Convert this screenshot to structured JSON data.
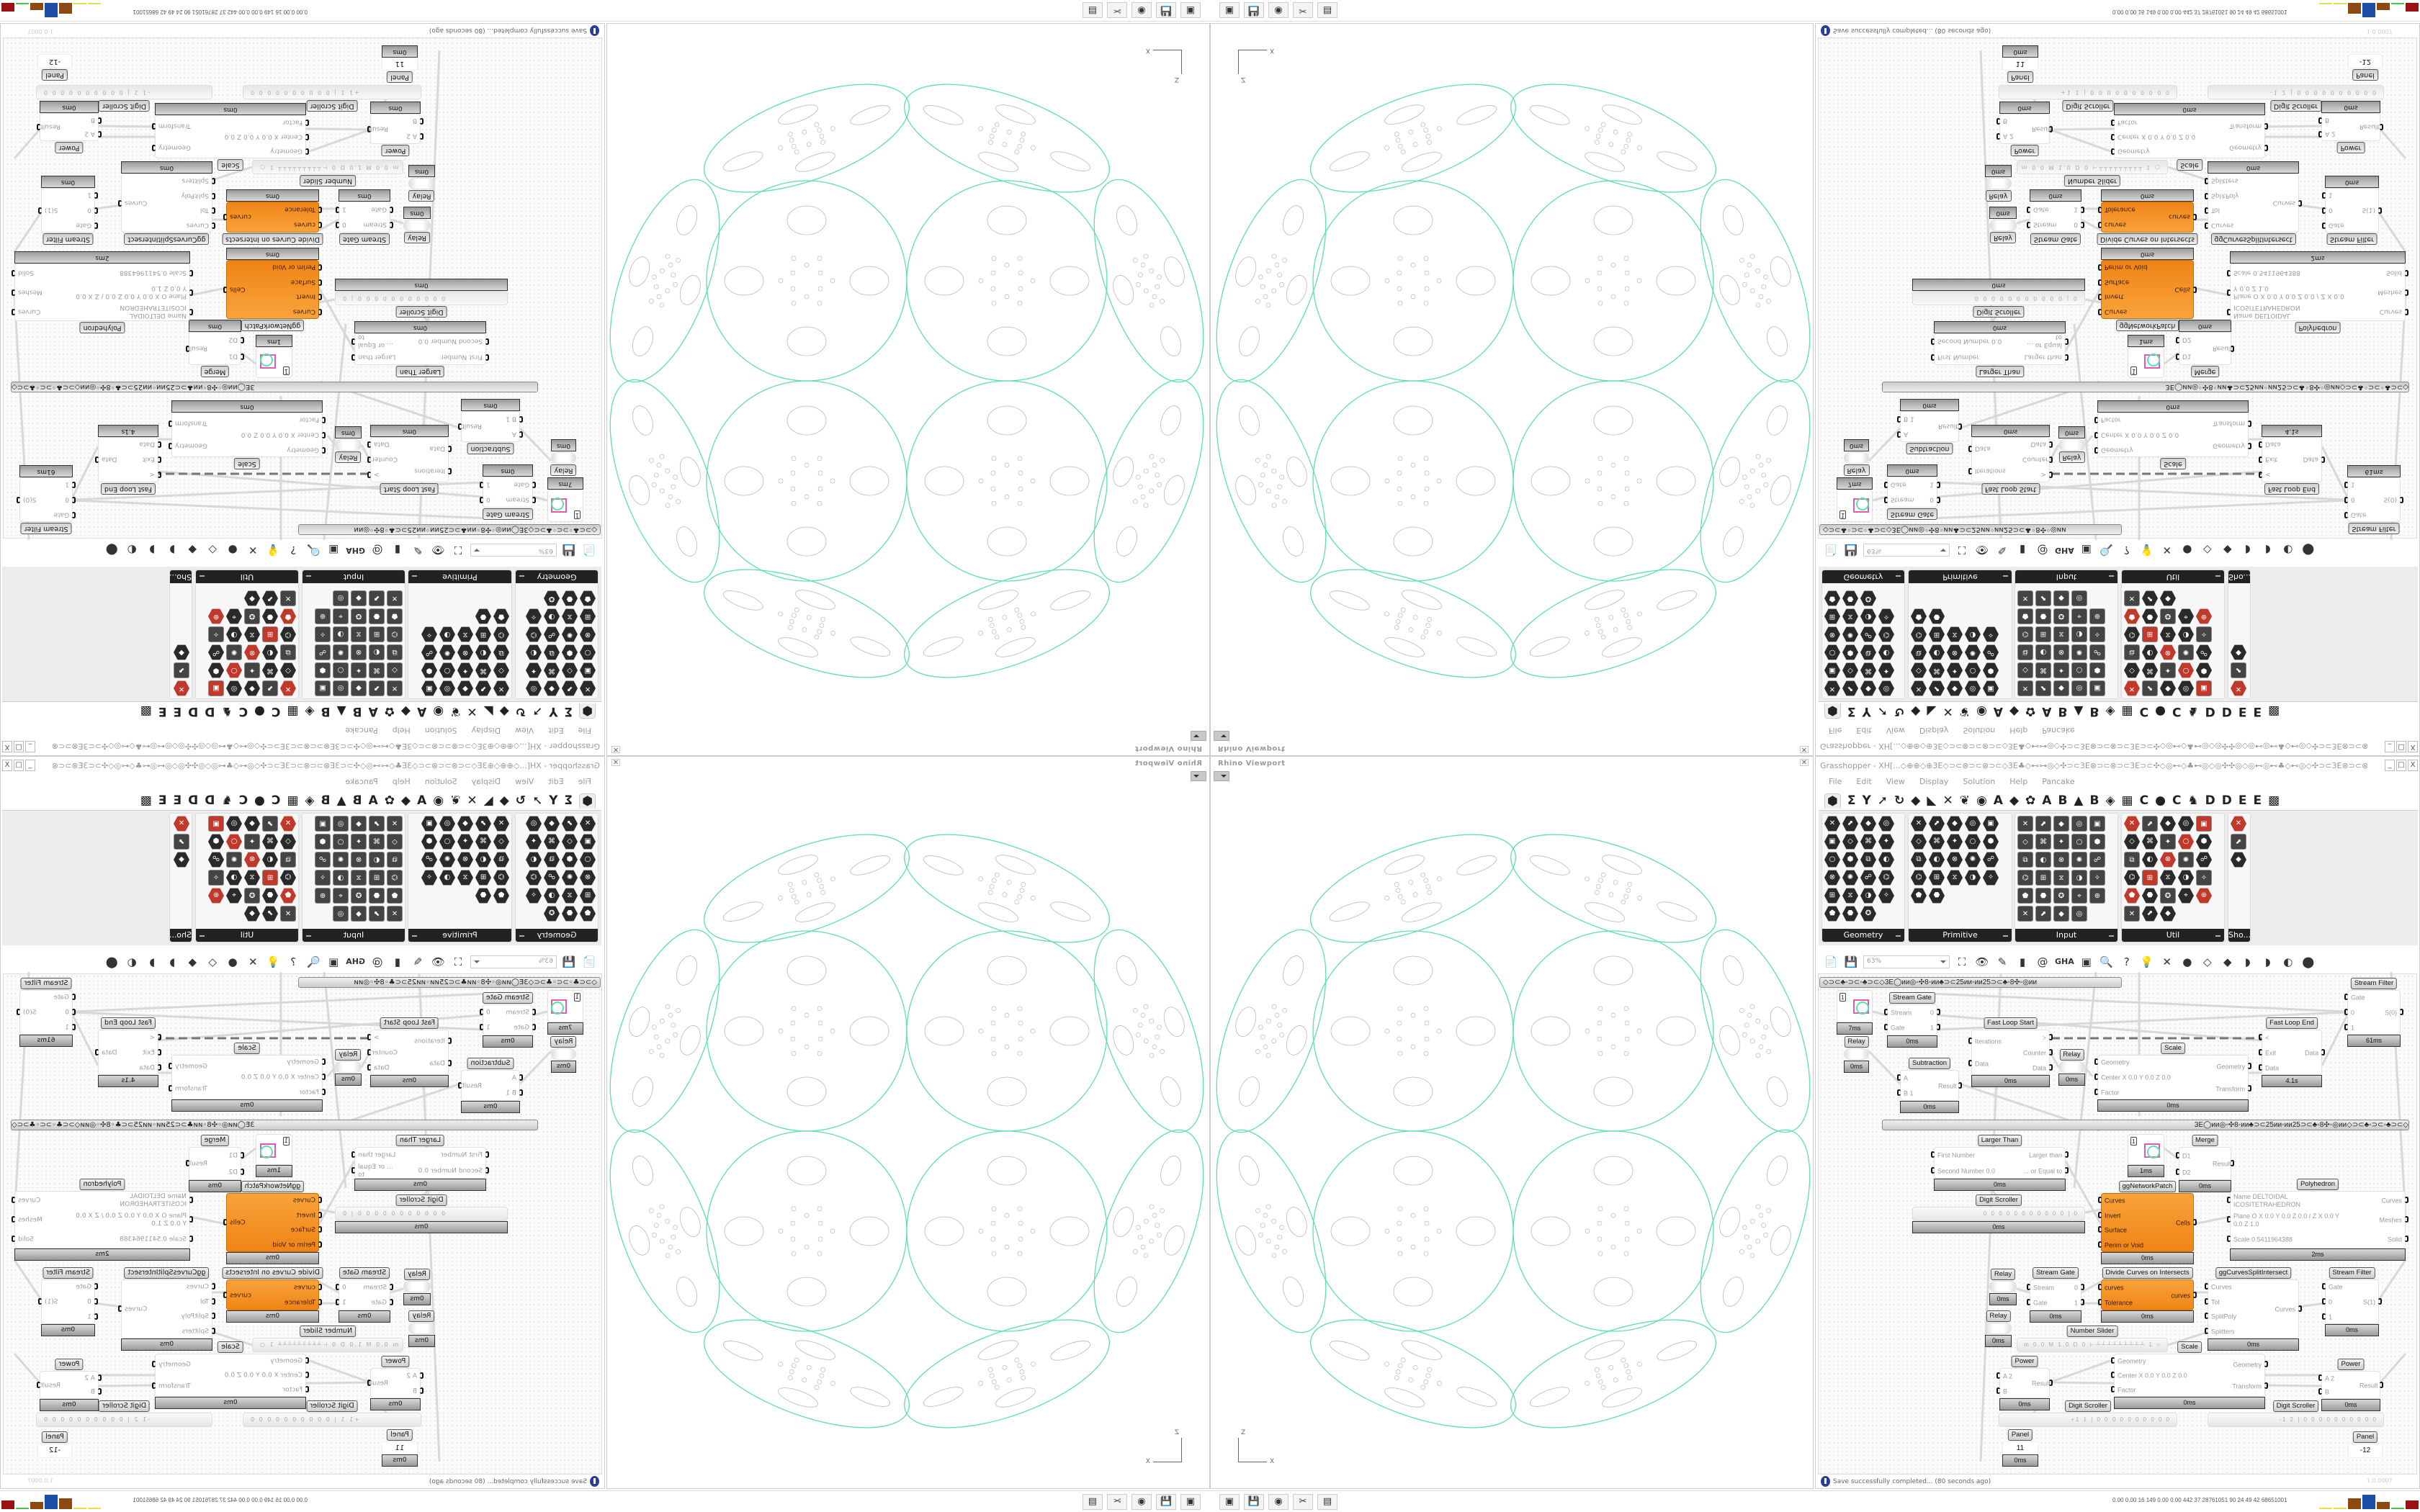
{
  "viewport": {
    "title": "Rhino Viewport",
    "close": "✕",
    "axis_z": "Z",
    "axis_x": "X",
    "curve_color": "#5fe0a8",
    "detail_color": "#b8b8b8"
  },
  "taskbar": {
    "icons": [
      "▣",
      "💾",
      "◉",
      "✂",
      "▤"
    ],
    "stats": "0.00 0.00  16  149  0.00 0.00  442  37  28761051  90  24  49  42  68651001",
    "bar_colors": [
      "#e8e04a",
      "#e8e04a",
      "#8b4a12",
      "#1d4fa8",
      "#8b4a12",
      "#4ec24e",
      "#9a1212"
    ]
  },
  "grasshopper": {
    "title": "Grasshopper - XH[...◇⊕⊕◇⊕3E◇⊃⊂⊗⊃⊂⊗⊃⊂◇3E♣◇⊷⊶◎◇✣⊃⊂3E⊗⊃⊂⊗⊃⊂3E⊃⊂✣◇◎⊷◇♣⊷◎◇◎✣✣◎◇◎⊷◎⊷♣◇⊷◎◇✣⊃⊂3E⊗⊃⊂⊗⊃⊂...",
    "window_buttons": [
      "_",
      "□",
      "X"
    ],
    "menu": [
      "File",
      "Edit",
      "View",
      "Display",
      "Solution",
      "Help",
      "Pancake"
    ],
    "tabs": [
      "⬢",
      "Σ",
      "Y",
      "➚",
      "↻",
      "◆",
      "◣",
      "✕",
      "❦",
      "◉",
      "A",
      "◆",
      "✿",
      "A",
      "B",
      "▲",
      "B",
      "◈",
      "▦",
      "C",
      "●",
      "C",
      "♞",
      "D",
      "D",
      "E",
      "E",
      "▩"
    ],
    "palette": [
      {
        "label": "Geometry",
        "count": 23,
        "style": "hex"
      },
      {
        "label": "Primitive",
        "count": 22,
        "style": "hex"
      },
      {
        "label": "Input",
        "count": 29,
        "style": "square"
      },
      {
        "label": "Util",
        "count": 28,
        "style": "mixed"
      },
      {
        "label": "Sho...",
        "count": 3,
        "style": "mixed"
      }
    ],
    "toolbar": {
      "zoom": "63%",
      "icons": [
        "📄",
        "💾",
        "⛶",
        "👁",
        "✎",
        "▮",
        "@",
        "GHA",
        "▣",
        "🔍",
        "?",
        "💡",
        "✕",
        "●",
        "◇",
        "◆",
        "◗",
        "◗",
        "◐",
        "⬤"
      ]
    },
    "group_text": "◇⊃⊂♣◦⊃⊂◦♣⊃⊂◇3E◯ᴎᴎ◎◦✣8◦ᴎᴎ♣⊃⊂25ᴎᴎ◦ᴎᴎ25⊃⊂♣◦8✣◦◎ᴎᴎ",
    "status": "Save successfully completed... (80 seconds ago)",
    "version": "1.0.0007",
    "components": [
      {
        "id": "swatch1",
        "type": "swatch",
        "value": "1",
        "time": "7ms"
      },
      {
        "id": "gate1",
        "name": "Stream Gate",
        "inputs": [
          "Stream",
          "Gate"
        ],
        "outputs": [
          "0",
          "1"
        ],
        "time": "0ms"
      },
      {
        "id": "relay1",
        "name": "Relay",
        "type": "relay",
        "time": "0ms"
      },
      {
        "id": "fls",
        "name": "Fast Loop Start",
        "inputs": [
          "Iterations",
          "Data"
        ],
        "outputs": [
          ">",
          "Counter",
          "Data"
        ],
        "time": "0ms"
      },
      {
        "id": "relay2",
        "name": "Relay",
        "type": "relay",
        "time": "0ms"
      },
      {
        "id": "sub",
        "name": "Subtraction",
        "inputs": [
          "A",
          "B 1"
        ],
        "outputs": [
          "Result"
        ],
        "time": "0ms"
      },
      {
        "id": "fle",
        "name": "Fast Loop End",
        "inputs": [
          "<",
          "Exit",
          "Data"
        ],
        "outputs": [
          "Data"
        ],
        "time": "4.1s"
      },
      {
        "id": "filter1",
        "name": "Stream Filter",
        "inputs": [
          "Gate",
          "0",
          "1"
        ],
        "outputs": [
          "S(0)"
        ],
        "time": "61ms"
      },
      {
        "id": "scale1",
        "name": "Scale",
        "inputs": [
          "Geometry",
          "Center X 0.0 Y 0.0 Z 0.0",
          "Factor"
        ],
        "outputs": [
          "Geometry",
          "Transform"
        ],
        "time": "0ms"
      },
      {
        "id": "larger",
        "name": "Larger Than",
        "inputs": [
          "First Number",
          "Second Number 0.0"
        ],
        "outputs": [
          "Larger than",
          "... or Equal to"
        ],
        "time": "0ms"
      },
      {
        "id": "swatch2",
        "type": "swatch",
        "value": "1",
        "time": "1ms"
      },
      {
        "id": "merge",
        "name": "Merge",
        "inputs": [
          "D1",
          "D2"
        ],
        "outputs": [
          "Result"
        ],
        "time": "0ms"
      },
      {
        "id": "ggnp",
        "name": "ggNetworkPatch",
        "orange": true,
        "inputs": [
          "Curves",
          "Invert",
          "Surface",
          "Perim or Void"
        ],
        "outputs": [
          "Cells"
        ],
        "time": "0ms"
      },
      {
        "id": "poly",
        "name": "Polyhedron",
        "inputs": [
          "Name DELTOIDAL ICOSITETRAHEDRON",
          "Plane  O X 0.0 Y 0.0 Z 0.0 / Z X 0.0 Y 0.0 Z 1.0",
          "Scale 0.5411964388"
        ],
        "outputs": [
          "Curves",
          "Meshes",
          "Solid"
        ],
        "time": "2ms"
      },
      {
        "id": "scroller1",
        "name": "Digit Scroller",
        "type": "scroller",
        "value": "0 0 0 0 0 0 0 0 0 0 0 | 0",
        "time": "0ms"
      },
      {
        "id": "dci",
        "name": "Divide Curves on Intersects",
        "orange": true,
        "inputs": [
          "curves",
          "Tolerance"
        ],
        "outputs": [
          "curves"
        ],
        "time": "0ms"
      },
      {
        "id": "ggcsi",
        "name": "ggCurvesSplitIntersect",
        "inputs": [
          "Curves",
          "Tol",
          "SplitPoly",
          "Splitters"
        ],
        "outputs": [
          "Curves"
        ],
        "time": "0ms"
      },
      {
        "id": "filter2",
        "name": "Stream Filter",
        "inputs": [
          "Gate",
          "0",
          "1"
        ],
        "outputs": [
          "S(1)"
        ],
        "time": "0ms"
      },
      {
        "id": "gate2",
        "name": "Stream Gate",
        "inputs": [
          "Stream",
          "Gate"
        ],
        "outputs": [
          "0",
          "1"
        ],
        "time": "0ms"
      },
      {
        "id": "relay3",
        "name": "Relay",
        "type": "relay",
        "time": "0ms"
      },
      {
        "id": "relay4",
        "name": "Relay",
        "type": "relay",
        "time": "0ms"
      },
      {
        "id": "slider",
        "name": "Number Slider",
        "type": "slider",
        "value": "m 0.0  M 1.0  D 0   ⊢┴┴┴┴┴┴┴┴┴ 1 ○"
      },
      {
        "id": "scale2",
        "name": "Scale",
        "inputs": [
          "Geometry",
          "Center X 0.0 Y 0.0 Z 0.0",
          "Factor"
        ],
        "outputs": [
          "Geometry",
          "Transform"
        ],
        "time": "0ms"
      },
      {
        "id": "power1",
        "name": "Power",
        "inputs": [
          "A 2",
          "B"
        ],
        "outputs": [
          "Result"
        ],
        "time": "0ms"
      },
      {
        "id": "power2",
        "name": "Power",
        "inputs": [
          "A 2",
          "B"
        ],
        "outputs": [
          "Result"
        ],
        "time": "0ms"
      },
      {
        "id": "scroller2",
        "name": "Digit Scroller",
        "type": "scroller",
        "value": "+1 1 | 0 0 0 0 0 0 0 0 0 0",
        "time": ""
      },
      {
        "id": "scroller3",
        "name": "Digit Scroller",
        "type": "scroller",
        "value": "-1 2 | 0 0 0 0 0 0 0 0 0 0",
        "time": ""
      },
      {
        "id": "panel1",
        "name": "Panel",
        "type": "panel",
        "value": "11",
        "time": "0ms"
      },
      {
        "id": "panel2",
        "name": "Panel",
        "type": "panel",
        "value": "-12",
        "time": ""
      }
    ]
  }
}
